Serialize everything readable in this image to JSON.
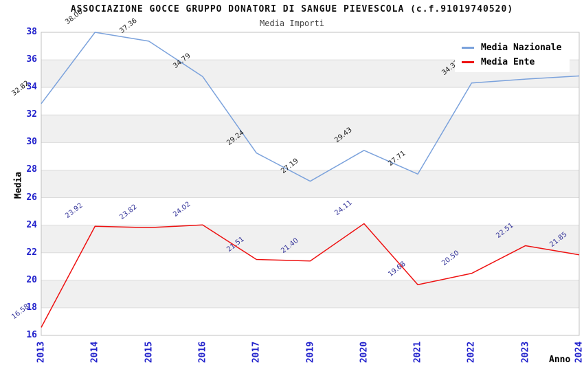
{
  "title": "ASSOCIAZIONE GOCCE GRUPPO DONATORI DI SANGUE PIEVESCOLA (c.f.91019740520)",
  "subtitle": "Media Importi",
  "legend": {
    "items": [
      {
        "label": "Media Nazionale",
        "color": "#7ba2dc"
      },
      {
        "label": "Media Ente",
        "color": "#ee1111"
      }
    ]
  },
  "chart_data": {
    "type": "line",
    "title": "ASSOCIAZIONE GOCCE GRUPPO DONATORI DI SANGUE PIEVESCOLA (c.f.91019740520)",
    "subtitle": "Media Importi",
    "x": [
      "2013",
      "2014",
      "2015",
      "2016",
      "2017",
      "2019",
      "2020",
      "2021",
      "2022",
      "2023",
      "2024"
    ],
    "series": [
      {
        "name": "Media Nazionale",
        "color": "#7ba2dc",
        "label_color": "#1a1a1a",
        "values": [
          32.82,
          38.0,
          37.36,
          34.79,
          29.24,
          27.19,
          29.43,
          27.71,
          34.32,
          34.6,
          34.83
        ]
      },
      {
        "name": "Media Ente",
        "color": "#ee1111",
        "label_color": "#333399",
        "values": [
          16.58,
          23.92,
          23.82,
          24.02,
          21.51,
          21.4,
          24.11,
          19.68,
          20.5,
          22.51,
          21.85
        ]
      }
    ],
    "xlabel": "Anno",
    "ylabel": "Media",
    "ylim": [
      16,
      38
    ],
    "ytick_step": 2,
    "grid": true,
    "legend_position": "top-right",
    "band_colors": [
      "#ffffff",
      "#f0f0f0"
    ],
    "gridline_color": "#dcdcdc",
    "border_color": "#c0c0c0",
    "tick_label_color": "#2222cc"
  }
}
